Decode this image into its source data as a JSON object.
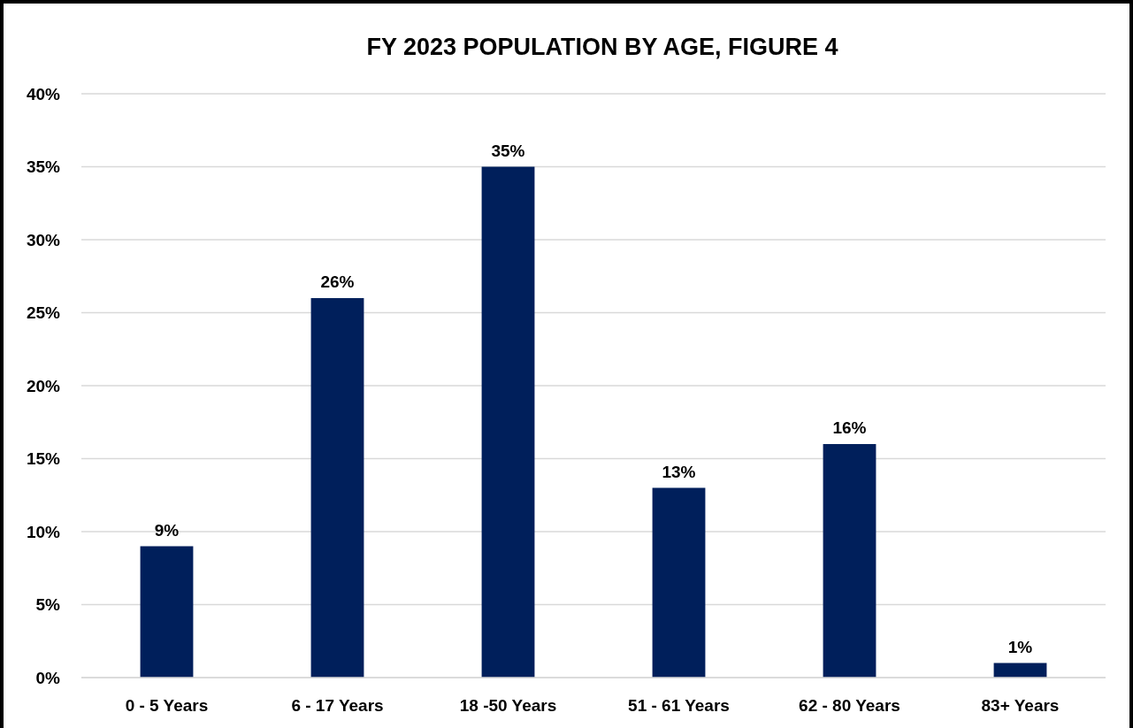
{
  "chart_data": {
    "type": "bar",
    "title": "FY 2023 POPULATION BY AGE, FIGURE 4",
    "categories": [
      "0 - 5 Years",
      "6 - 17 Years",
      "18 -50 Years",
      "51 - 61 Years",
      "62 - 80 Years",
      "83+ Years"
    ],
    "values": [
      9,
      26,
      35,
      13,
      16,
      1
    ],
    "value_labels": [
      "9%",
      "26%",
      "35%",
      "13%",
      "16%",
      "1%"
    ],
    "color": "#001f5b",
    "ylim": [
      0,
      40
    ],
    "yticks": [
      {
        "value": 0,
        "label": "0%"
      },
      {
        "value": 5,
        "label": "5%"
      },
      {
        "value": 10,
        "label": "10%"
      },
      {
        "value": 15,
        "label": "15%"
      },
      {
        "value": 20,
        "label": "20%"
      },
      {
        "value": 25,
        "label": "25%"
      },
      {
        "value": 30,
        "label": "30%"
      },
      {
        "value": 35,
        "label": "35%"
      },
      {
        "value": 40,
        "label": "40%"
      }
    ],
    "grid": "y"
  }
}
